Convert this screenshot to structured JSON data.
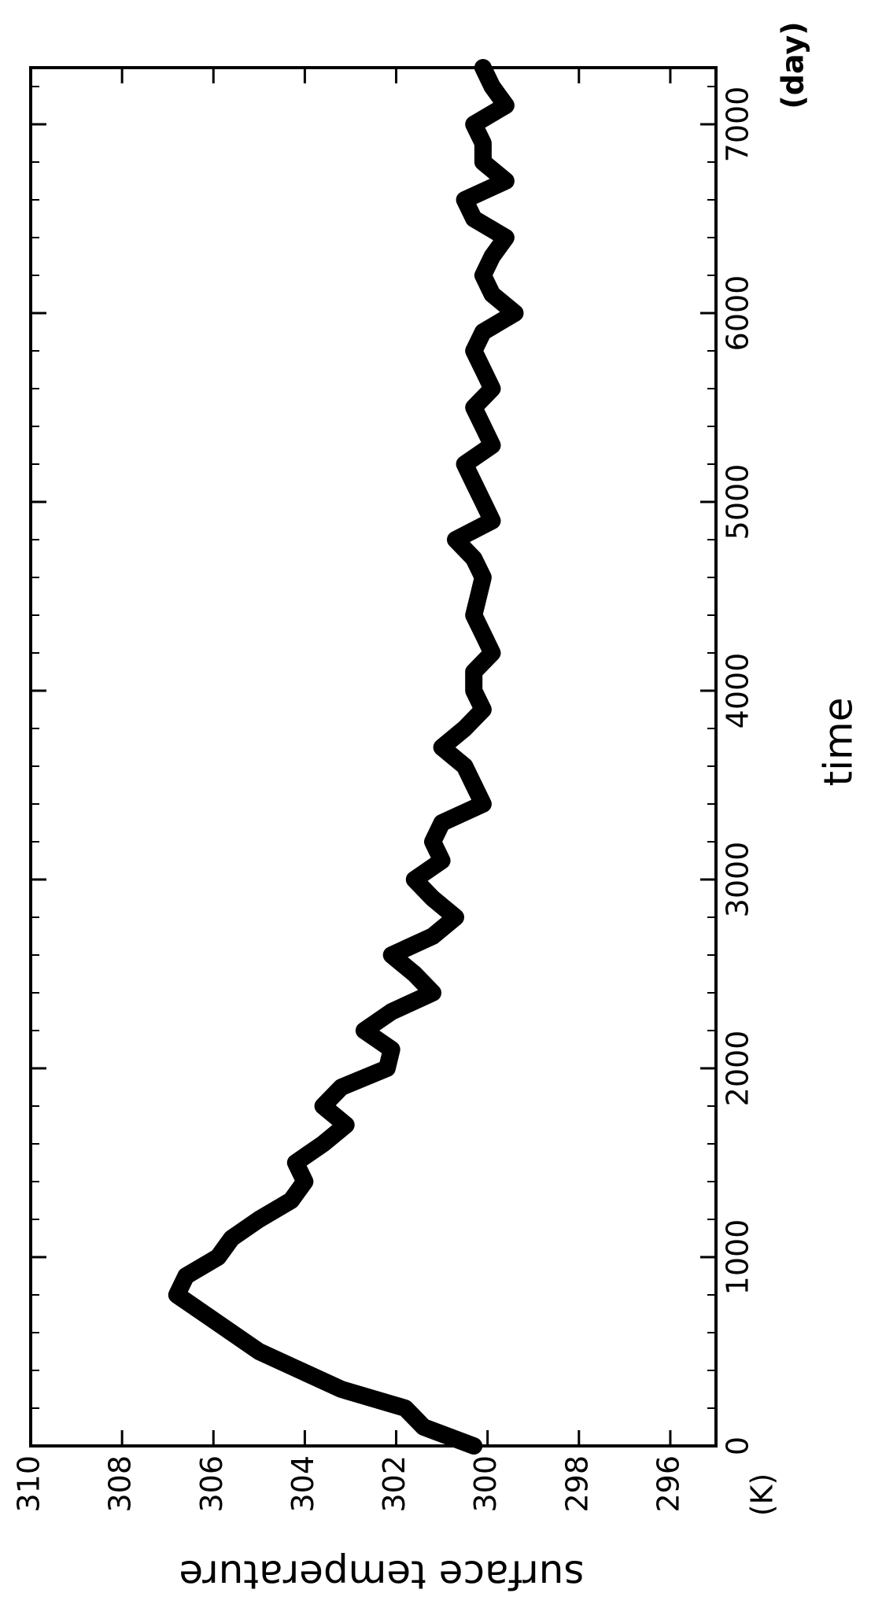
{
  "chart_data": {
    "type": "line",
    "ylabel": "surface temperature",
    "ylabel_unit": "(K)",
    "xlabel": "time",
    "xlabel_unit": "(day)",
    "color": "#000000",
    "xlim": [
      0,
      7300
    ],
    "xticks": [
      0,
      1000,
      2000,
      3000,
      4000,
      5000,
      6000,
      7000
    ],
    "xminorticks": [
      200,
      400,
      600,
      800,
      1200,
      1400,
      1600,
      1800,
      2200,
      2400,
      2600,
      2800,
      3200,
      3400,
      3600,
      3800,
      4200,
      4400,
      4600,
      4800,
      5200,
      5400,
      5600,
      5800,
      6200,
      6400,
      6600,
      6800,
      7200
    ],
    "ylim": [
      295,
      310
    ],
    "yticks": [
      296,
      298,
      300,
      302,
      304,
      306,
      308,
      310
    ],
    "x": [
      0,
      100,
      200,
      300,
      400,
      500,
      600,
      700,
      800,
      900,
      1000,
      1100,
      1200,
      1300,
      1400,
      1500,
      1600,
      1700,
      1800,
      1900,
      2000,
      2100,
      2200,
      2300,
      2400,
      2500,
      2600,
      2700,
      2800,
      2900,
      3000,
      3100,
      3200,
      3300,
      3400,
      3500,
      3600,
      3700,
      3800,
      3900,
      4000,
      4100,
      4200,
      4300,
      4400,
      4500,
      4600,
      4700,
      4800,
      4900,
      5000,
      5100,
      5200,
      5300,
      5400,
      5500,
      5600,
      5700,
      5800,
      5900,
      6000,
      6100,
      6200,
      6300,
      6400,
      6500,
      6600,
      6700,
      6800,
      6900,
      7000,
      7100,
      7200,
      7300
    ],
    "values": [
      300.3,
      301.4,
      301.8,
      303.2,
      304.1,
      305,
      305.6,
      306.2,
      306.8,
      306.6,
      305.9,
      305.6,
      305,
      304.3,
      304,
      304.2,
      303.6,
      303.1,
      303.6,
      303.2,
      302.2,
      302.1,
      302.7,
      302.1,
      301.2,
      301.6,
      302.1,
      301.2,
      300.7,
      301.2,
      301.6,
      301,
      301.2,
      301,
      300.1,
      300.3,
      300.5,
      301,
      300.5,
      300.1,
      300.3,
      300.3,
      299.9,
      300.1,
      300.3,
      300.2,
      300.1,
      300.3,
      300.7,
      299.9,
      300.1,
      300.3,
      300.5,
      299.9,
      300.1,
      300.3,
      299.9,
      300.1,
      300.3,
      300.1,
      299.4,
      299.9,
      300.1,
      299.9,
      299.6,
      300.3,
      300.5,
      299.6,
      300.1,
      300.1,
      300.3,
      299.6,
      299.9,
      300.1
    ]
  }
}
